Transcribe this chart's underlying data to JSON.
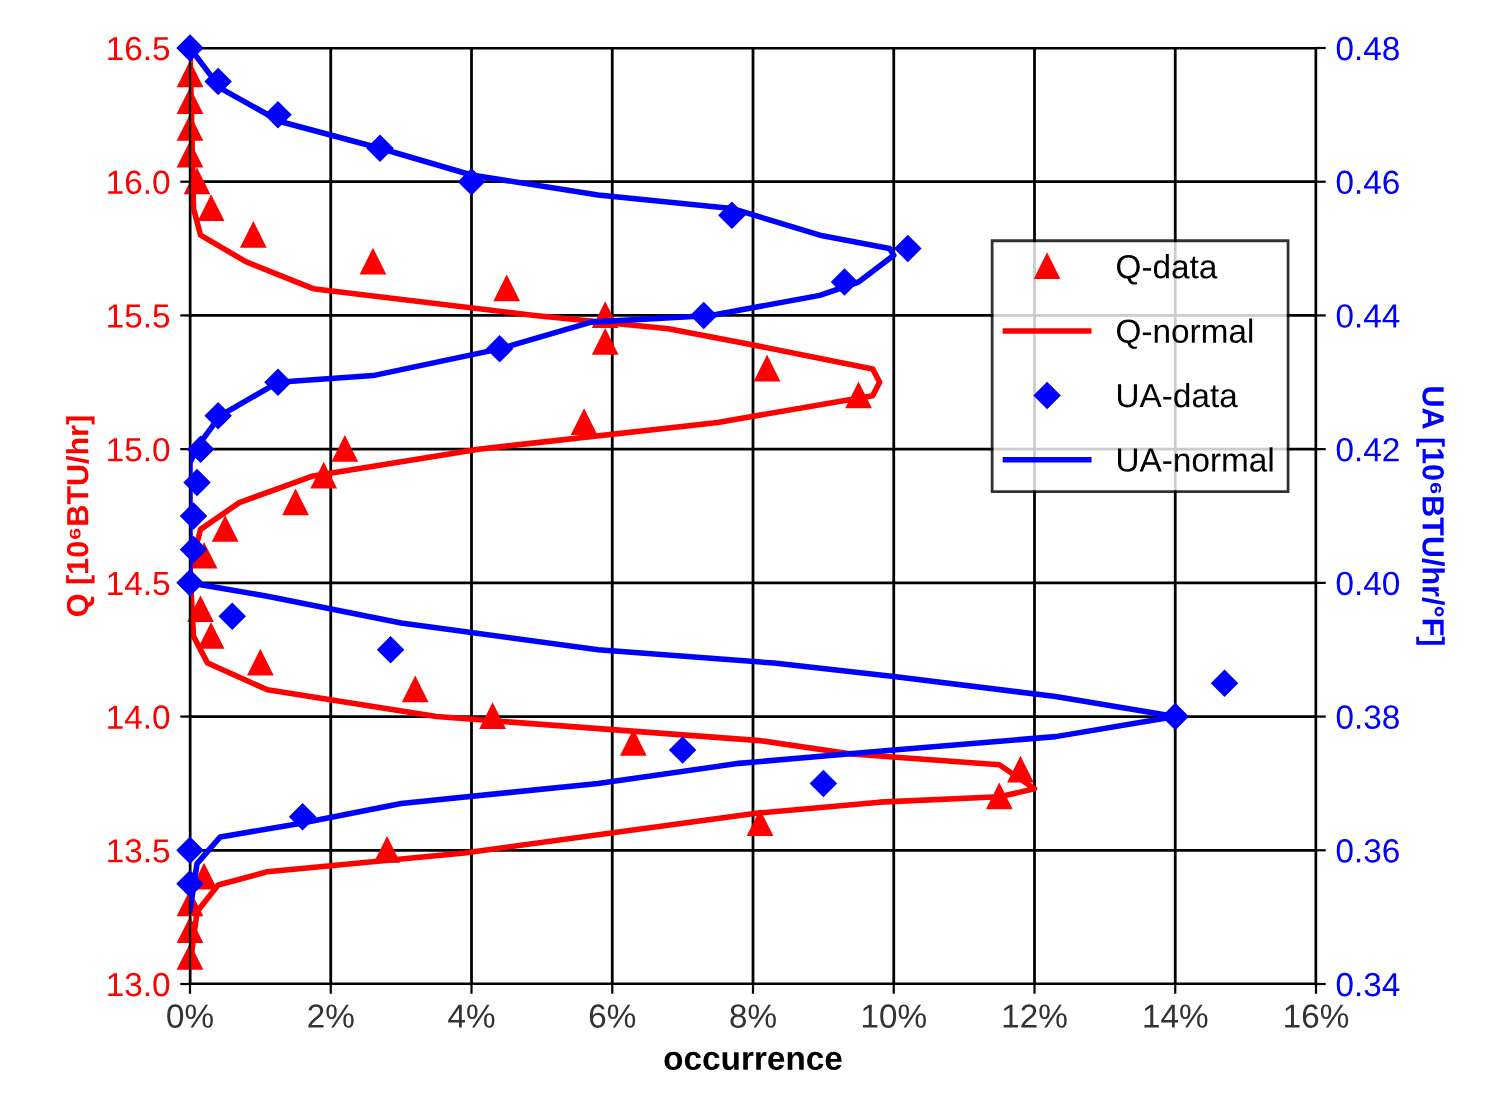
{
  "chart_data": {
    "type": "scatter",
    "xlabel": "occurrence",
    "ylabel": "Q [10⁶BTU/hr]",
    "y2label": "UA [10⁶BTU/hr/°F]",
    "xlim": [
      0,
      16
    ],
    "xticks": [
      {
        "value": 0,
        "label": "0%"
      },
      {
        "value": 2,
        "label": "2%"
      },
      {
        "value": 4,
        "label": "4%"
      },
      {
        "value": 6,
        "label": "6%"
      },
      {
        "value": 8,
        "label": "8%"
      },
      {
        "value": 10,
        "label": "10%"
      },
      {
        "value": 12,
        "label": "12%"
      },
      {
        "value": 14,
        "label": "14%"
      },
      {
        "value": 16,
        "label": "16%"
      }
    ],
    "ylim": [
      13,
      16.5
    ],
    "yticks": [
      {
        "value": 13,
        "label": "13.0"
      },
      {
        "value": 13.5,
        "label": "13.5"
      },
      {
        "value": 14,
        "label": "14.0"
      },
      {
        "value": 14.5,
        "label": "14.5"
      },
      {
        "value": 15,
        "label": "15.0"
      },
      {
        "value": 15.5,
        "label": "15.5"
      },
      {
        "value": 16,
        "label": "16.0"
      },
      {
        "value": 16.5,
        "label": "16.5"
      }
    ],
    "y2lim": [
      0.34,
      0.48
    ],
    "y2ticks": [
      0.34,
      0.36,
      0.38,
      {
        "value": 0.4,
        "label": "0.40"
      },
      0.42,
      0.44,
      0.46,
      0.48
    ],
    "grid": true,
    "legend": "right",
    "series": [
      {
        "name": "Q-data",
        "marker": "triangle",
        "color": "#ff0000",
        "x": [
          0,
          0,
          0,
          0,
          0.1,
          0.3,
          0.9,
          2.6,
          4.5,
          5.9,
          5.9,
          8.2,
          9.5,
          5.6,
          2.2,
          1.9,
          1.5,
          0.5,
          0.2,
          0.15,
          0.3,
          1.0,
          3.2,
          4.3,
          6.3,
          11.8,
          11.5,
          8.1,
          2.8,
          0.2,
          0,
          0,
          0
        ],
        "values": [
          16.4,
          16.3,
          16.2,
          16.1,
          16.0,
          15.9,
          15.8,
          15.7,
          15.6,
          15.5,
          15.4,
          15.3,
          15.2,
          15.1,
          15.0,
          14.9,
          14.8,
          14.7,
          14.6,
          14.4,
          14.3,
          14.2,
          14.1,
          14.0,
          13.9,
          13.8,
          13.7,
          13.6,
          13.5,
          13.4,
          13.3,
          13.2,
          13.1
        ]
      },
      {
        "name": "Q-normal",
        "type": "line",
        "marker": "none",
        "color": "#ff0000",
        "x": [
          0,
          0.05,
          0.15,
          0.8,
          1.75,
          4.9,
          6.8,
          7.8,
          9.7,
          9.8,
          9.7,
          7.5,
          4.1,
          1.75,
          0.7,
          0.15,
          0,
          0.05,
          0.25,
          1.1,
          3.5,
          8.1,
          9.4,
          11.5,
          12.0,
          11.5,
          9.8,
          8.1,
          3.9,
          1.1,
          0.4,
          0.1,
          0
        ],
        "values": [
          16.5,
          15.9,
          15.8,
          15.7,
          15.6,
          15.5,
          15.45,
          15.4,
          15.3,
          15.25,
          15.2,
          15.1,
          15.0,
          14.9,
          14.8,
          14.7,
          14.55,
          14.3,
          14.2,
          14.1,
          14.0,
          13.91,
          13.86,
          13.82,
          13.73,
          13.7,
          13.68,
          13.64,
          13.49,
          13.42,
          13.37,
          13.27,
          13.07
        ]
      },
      {
        "name": "UA-data",
        "marker": "diamond",
        "color": "#0000ff",
        "axis": "y2",
        "x": [
          0,
          0.4,
          1.25,
          2.7,
          4.0,
          7.7,
          10.2,
          9.3,
          7.3,
          4.4,
          1.25,
          0.4,
          0.15,
          0.1,
          0.05,
          0.05,
          0,
          0.6,
          2.85,
          14.7,
          14.0,
          7.0,
          9.0,
          1.6,
          0,
          0
        ],
        "values": [
          0.48,
          0.475,
          0.47,
          0.465,
          0.46,
          0.455,
          0.45,
          0.445,
          0.44,
          0.435,
          0.43,
          0.425,
          0.42,
          0.415,
          0.41,
          0.405,
          0.4,
          0.395,
          0.39,
          0.385,
          0.38,
          0.375,
          0.37,
          0.365,
          0.36,
          0.355
        ]
      },
      {
        "name": "UA-normal",
        "type": "line",
        "marker": "none",
        "color": "#0000ff",
        "axis": "y2",
        "x": [
          0,
          0.43,
          1.28,
          2.7,
          4.0,
          5.8,
          7.7,
          8.95,
          9.94,
          10.0,
          9.5,
          8.95,
          7.4,
          5.7,
          4.4,
          2.6,
          1.25,
          0.43,
          0.15,
          0,
          0,
          1.1,
          3.0,
          5.8,
          8.3,
          10.0,
          12.3,
          14.0,
          12.3,
          10.0,
          7.8,
          5.8,
          3.0,
          1.56,
          0.43,
          0.1,
          0
        ],
        "values": [
          0.48,
          0.474,
          0.469,
          0.465,
          0.461,
          0.458,
          0.456,
          0.452,
          0.45,
          0.449,
          0.445,
          0.443,
          0.44,
          0.439,
          0.435,
          0.431,
          0.43,
          0.425,
          0.421,
          0.418,
          0.4,
          0.398,
          0.394,
          0.39,
          0.388,
          0.386,
          0.383,
          0.38,
          0.377,
          0.375,
          0.373,
          0.37,
          0.367,
          0.364,
          0.362,
          0.358,
          0.351
        ]
      }
    ]
  }
}
